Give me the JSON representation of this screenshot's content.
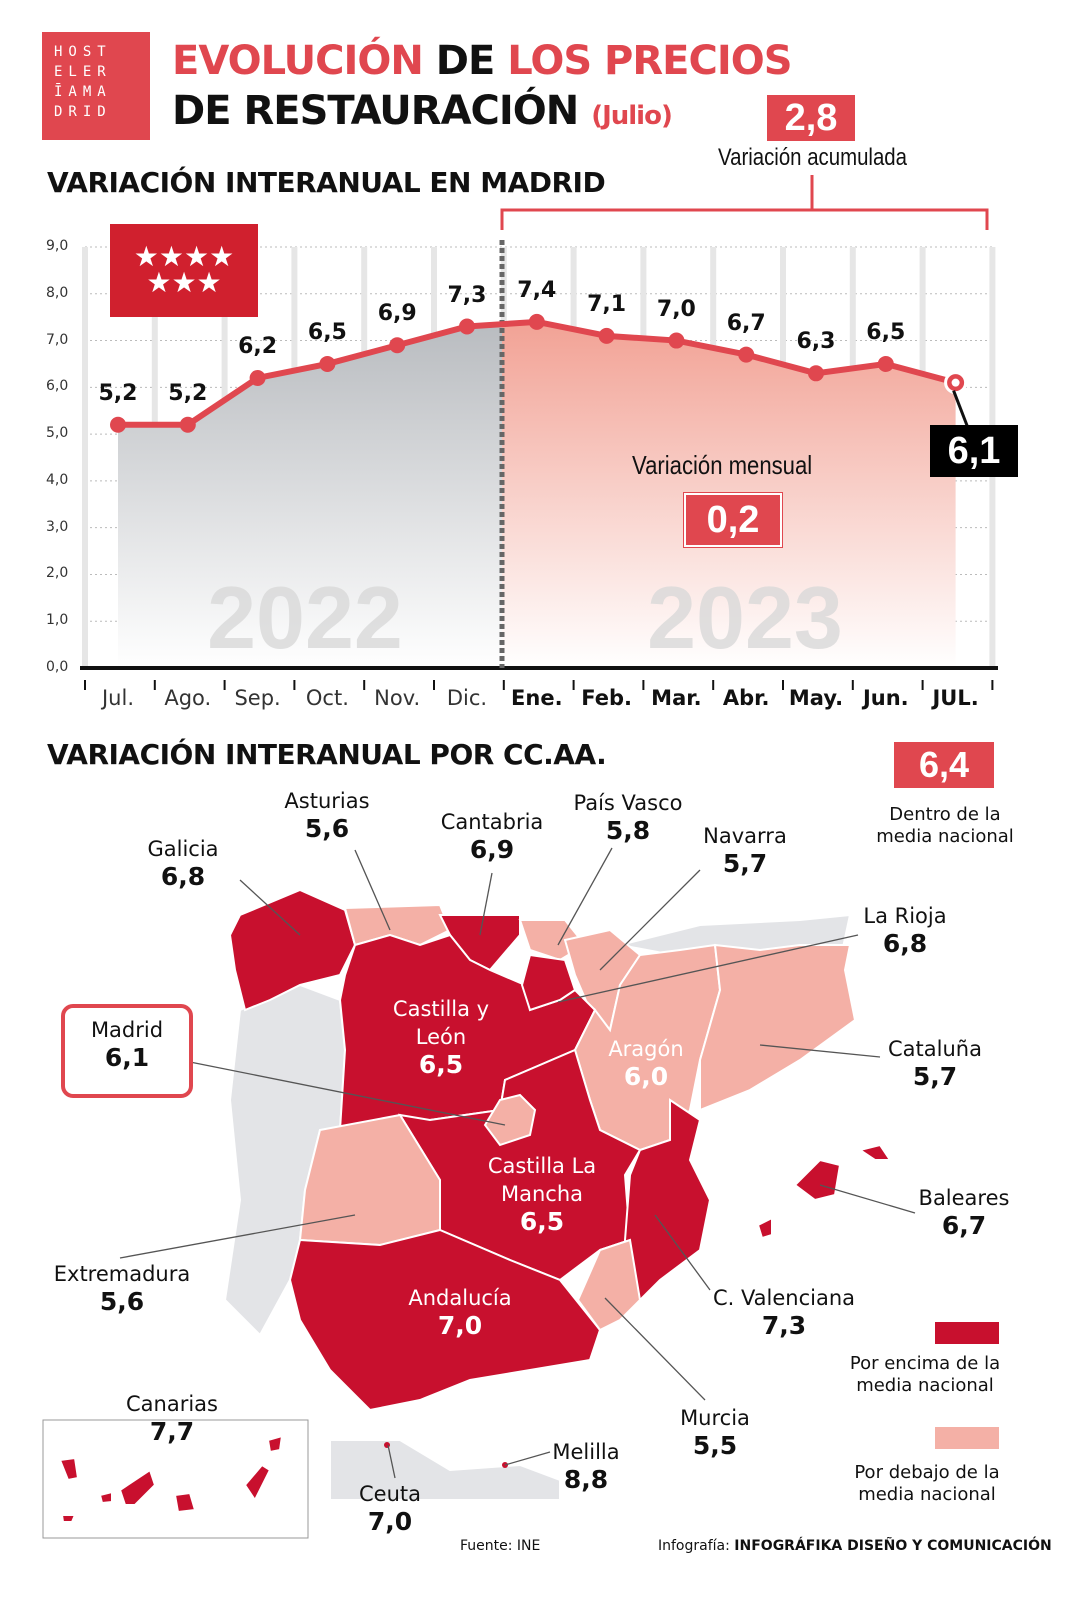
{
  "logo": {
    "lines": [
      "HOST",
      "ELER",
      "ĪAMA",
      "DRID"
    ]
  },
  "title": {
    "part1": "EVOLUCIÓN",
    "part2": "DE",
    "part3": "LOS PRECIOS",
    "line2": "DE RESTAURACIÓN",
    "sub": "(Julio)"
  },
  "accumulated": {
    "value": "2,8",
    "label": "Variación acumulada"
  },
  "monthly": {
    "value": "0,2",
    "label": "Variación mensual"
  },
  "colors": {
    "accent": "#e0474f",
    "above": "#c8102e",
    "below": "#f4b0a6",
    "grey": "#e3e4e7"
  },
  "chart_data": {
    "type": "line",
    "title": "VARIACIÓN INTERANUAL EN MADRID",
    "categories": [
      "Jul.",
      "Ago.",
      "Sep.",
      "Oct.",
      "Nov.",
      "Dic.",
      "Ene.",
      "Feb.",
      "Mar.",
      "Abr.",
      "May.",
      "Jun.",
      "JUL."
    ],
    "values": [
      5.2,
      5.2,
      6.2,
      6.5,
      6.9,
      7.3,
      7.4,
      7.1,
      7.0,
      6.7,
      6.3,
      6.5,
      6.1
    ],
    "labels": [
      "5,2",
      "5,2",
      "6,2",
      "6,5",
      "6,9",
      "7,3",
      "7,4",
      "7,1",
      "7,0",
      "6,7",
      "6,3",
      "6,5",
      "6,1"
    ],
    "yticks": [
      "0,0",
      "1,0",
      "2,0",
      "3,0",
      "4,0",
      "5,0",
      "6,0",
      "7,0",
      "8,0",
      "9,0"
    ],
    "ylim": [
      0,
      9
    ],
    "years": [
      "2022",
      "2023"
    ],
    "grid": true
  },
  "map": {
    "title": "VARIACIÓN INTERANUAL POR CC.AA.",
    "national": {
      "value": "6,4",
      "label1": "Dentro de la",
      "label2": "media nacional"
    },
    "regions": [
      {
        "name": "Galicia",
        "value": "6,8"
      },
      {
        "name": "Asturias",
        "value": "5,6"
      },
      {
        "name": "Cantabria",
        "value": "6,9"
      },
      {
        "name": "País Vasco",
        "value": "5,8"
      },
      {
        "name": "Navarra",
        "value": "5,7"
      },
      {
        "name": "La Rioja",
        "value": "6,8"
      },
      {
        "name": "Castilla y León",
        "value": "6,5"
      },
      {
        "name": "Madrid",
        "value": "6,1"
      },
      {
        "name": "Aragón",
        "value": "6,0"
      },
      {
        "name": "Cataluña",
        "value": "5,7"
      },
      {
        "name": "Castilla La Mancha",
        "value": "6,5"
      },
      {
        "name": "Baleares",
        "value": "6,7"
      },
      {
        "name": "Extremadura",
        "value": "5,6"
      },
      {
        "name": "Andalucía",
        "value": "7,0"
      },
      {
        "name": "C. Valenciana",
        "value": "7,3"
      },
      {
        "name": "Murcia",
        "value": "5,5"
      },
      {
        "name": "Canarias",
        "value": "7,7"
      },
      {
        "name": "Ceuta",
        "value": "7,0"
      },
      {
        "name": "Melilla",
        "value": "8,8"
      }
    ],
    "legend_above": [
      "Por encima de la",
      "media nacional"
    ],
    "legend_below": [
      "Por debajo de la",
      "media nacional"
    ]
  },
  "footer": {
    "source": "Fuente: INE",
    "credit_prefix": "Infografía:",
    "credit": "INFOGRÁFIKA DISEÑO Y COMUNICACIÓN"
  }
}
